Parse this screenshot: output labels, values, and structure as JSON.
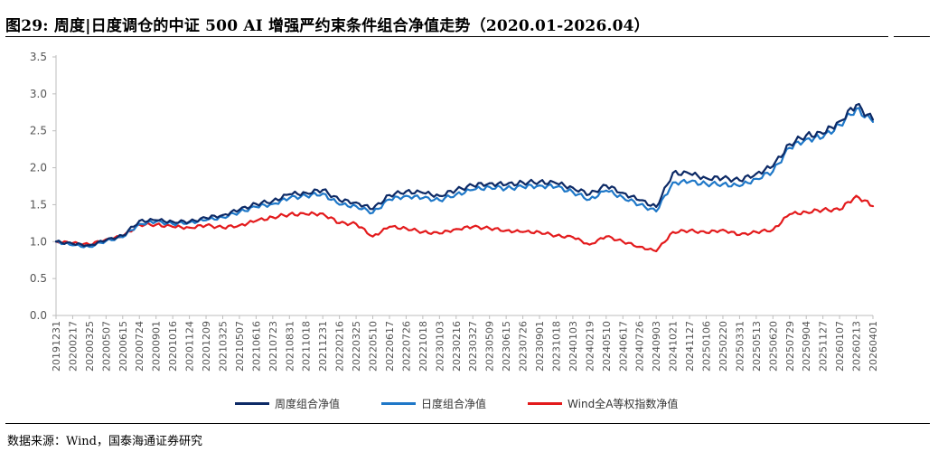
{
  "figure": {
    "title": "图29:  周度|日度调仓的中证 500 AI 增强严约束条件组合净值走势（2020.01-2026.04）",
    "source": "数据来源：Wind，国泰海通证券研究"
  },
  "chart_data": {
    "type": "line",
    "title": "",
    "xlabel": "",
    "ylabel": "",
    "ylim": [
      0,
      3.5
    ],
    "yticks": [
      "0.0",
      "0.5",
      "1.0",
      "1.5",
      "2.0",
      "2.5",
      "3.0",
      "3.5"
    ],
    "grid": false,
    "legend_position": "bottom",
    "categories": [
      "20191231",
      "20200217",
      "20200325",
      "20200507",
      "20200615",
      "20200724",
      "20200901",
      "20201016",
      "20201124",
      "20201209",
      "20210325",
      "20210507",
      "20210616",
      "20210723",
      "20210831",
      "20211018",
      "20211231",
      "20220216",
      "20220325",
      "20220510",
      "20220617",
      "20220726",
      "20221018",
      "20230103",
      "20230216",
      "20230327",
      "20230509",
      "20230615",
      "20230726",
      "20230901",
      "20231018",
      "20240103",
      "20240219",
      "20240510",
      "20240617",
      "20240726",
      "20240903",
      "20241021",
      "20241127",
      "20250106",
      "20250220",
      "20250331",
      "20250513",
      "20250620",
      "20250729",
      "20250904",
      "20251127",
      "20260107",
      "20260213",
      "20260401"
    ],
    "series": [
      {
        "name": "周度组合净值",
        "color": "#0d2a66",
        "values": [
          1.0,
          0.97,
          0.95,
          1.02,
          1.08,
          1.28,
          1.29,
          1.27,
          1.27,
          1.32,
          1.36,
          1.43,
          1.51,
          1.55,
          1.64,
          1.66,
          1.7,
          1.56,
          1.53,
          1.44,
          1.63,
          1.68,
          1.66,
          1.62,
          1.7,
          1.76,
          1.79,
          1.77,
          1.8,
          1.81,
          1.79,
          1.73,
          1.64,
          1.76,
          1.66,
          1.56,
          1.47,
          1.93,
          1.92,
          1.86,
          1.86,
          1.83,
          1.92,
          2.02,
          2.32,
          2.44,
          2.46,
          2.63,
          2.85,
          2.65
        ]
      },
      {
        "name": "日度组合净值",
        "color": "#1f78c8",
        "values": [
          1.0,
          0.95,
          0.93,
          1.01,
          1.06,
          1.24,
          1.27,
          1.24,
          1.26,
          1.29,
          1.33,
          1.4,
          1.47,
          1.51,
          1.59,
          1.62,
          1.65,
          1.5,
          1.48,
          1.39,
          1.57,
          1.62,
          1.59,
          1.56,
          1.64,
          1.7,
          1.74,
          1.72,
          1.74,
          1.76,
          1.74,
          1.67,
          1.57,
          1.69,
          1.6,
          1.5,
          1.41,
          1.8,
          1.81,
          1.78,
          1.78,
          1.75,
          1.85,
          1.95,
          2.27,
          2.39,
          2.41,
          2.58,
          2.8,
          2.62
        ]
      },
      {
        "name": "Wind全A等权指数净值",
        "color": "#e31a1c",
        "values": [
          1.0,
          0.98,
          0.96,
          1.03,
          1.07,
          1.23,
          1.23,
          1.2,
          1.19,
          1.22,
          1.19,
          1.22,
          1.28,
          1.33,
          1.37,
          1.37,
          1.38,
          1.25,
          1.24,
          1.07,
          1.2,
          1.18,
          1.13,
          1.11,
          1.17,
          1.2,
          1.18,
          1.15,
          1.13,
          1.13,
          1.08,
          1.06,
          0.96,
          1.07,
          1.0,
          0.93,
          0.87,
          1.13,
          1.15,
          1.12,
          1.16,
          1.09,
          1.13,
          1.16,
          1.37,
          1.4,
          1.43,
          1.43,
          1.62,
          1.48
        ]
      }
    ]
  }
}
